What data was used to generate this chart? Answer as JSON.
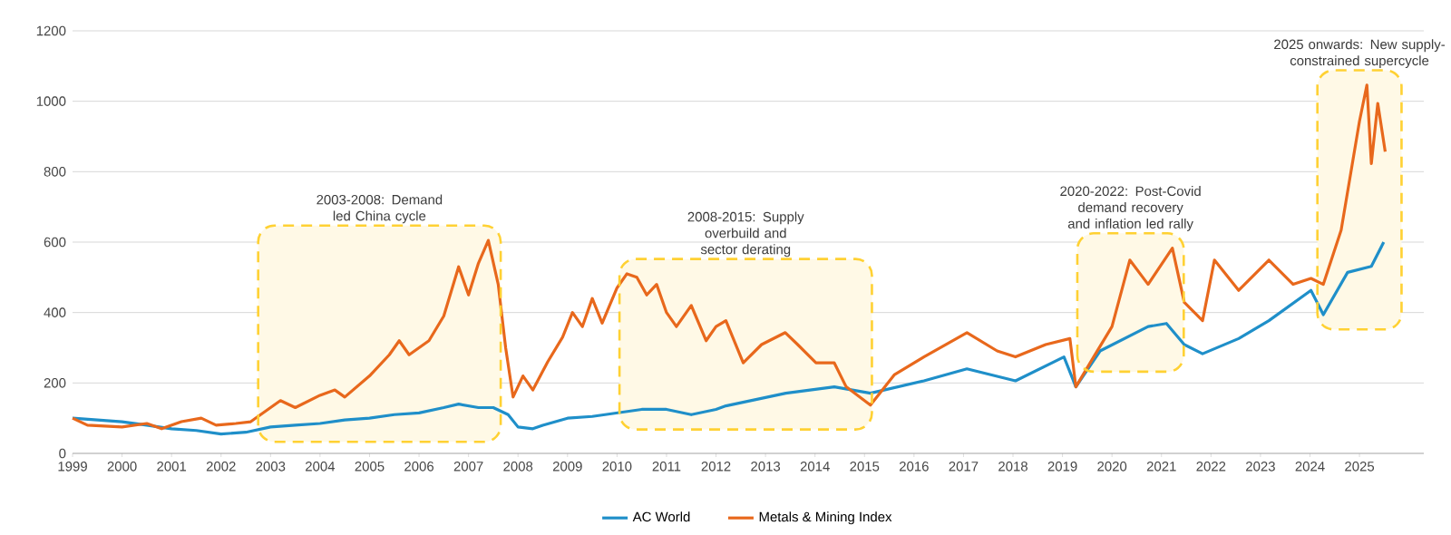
{
  "chart_data": {
    "type": "line",
    "x": [
      1999,
      1999.3,
      2000,
      2000.5,
      2000.8,
      2001.2,
      2001.6,
      2001.9,
      2002.3,
      2002.6,
      2003.0,
      2003.2,
      2003.5,
      2004.0,
      2004.3,
      2004.5,
      2005.0,
      2005.4,
      2005.6,
      2005.8,
      2006.2,
      2006.5,
      2006.8,
      2007.0,
      2007.2,
      2007.4,
      2007.6,
      2007.75,
      2007.9,
      2008.1,
      2008.3,
      2008.6,
      2008.9,
      2009.1,
      2009.3,
      2009.5,
      2009.7,
      2010.0,
      2010.2,
      2010.4,
      2010.6,
      2010.8,
      2011.0,
      2011.2,
      2011.5,
      2011.8,
      2012.0,
      2012.2,
      2012.55,
      2012.92,
      2013.4,
      2013.65,
      2014.02,
      2014.39,
      2014.63,
      2015.12,
      2015.6,
      2016.2,
      2017.07,
      2017.68,
      2018.05,
      2018.66,
      2019.15,
      2019.27,
      2019.63,
      2020.0,
      2020.36,
      2020.73,
      2021.22,
      2021.46,
      2021.83,
      2022.07,
      2022.56,
      2023.17,
      2023.66,
      2024.02,
      2024.27,
      2024.63,
      2025.0,
      2025.15,
      2025.24,
      2025.37,
      2025.52
    ],
    "series": [
      {
        "name": "AC World",
        "color": "#1f8fc9",
        "x": [
          1999,
          1999.5,
          2000,
          2000.5,
          2001,
          2001.5,
          2002,
          2002.5,
          2003,
          2003.5,
          2004,
          2004.5,
          2005,
          2005.5,
          2006,
          2006.5,
          2006.8,
          2007.2,
          2007.5,
          2007.8,
          2008.0,
          2008.3,
          2008.5,
          2009,
          2009.5,
          2010,
          2010.5,
          2011,
          2011.5,
          2012,
          2012.2,
          2013.41,
          2014.39,
          2015.12,
          2016.2,
          2017.07,
          2018.05,
          2019.03,
          2019.27,
          2019.76,
          2020.73,
          2021.1,
          2021.46,
          2021.83,
          2022.56,
          2023.17,
          2024.02,
          2024.27,
          2024.76,
          2025.24,
          2025.49
        ],
        "values": [
          100,
          95,
          90,
          80,
          70,
          65,
          55,
          60,
          75,
          80,
          85,
          95,
          100,
          110,
          115,
          130,
          140,
          130,
          130,
          110,
          75,
          70,
          80,
          100,
          105,
          115,
          125,
          125,
          110,
          125,
          135,
          171,
          189,
          171,
          206,
          240,
          206,
          274,
          189,
          291,
          360,
          369,
          309,
          283,
          326,
          377,
          463,
          394,
          514,
          531,
          600
        ]
      },
      {
        "name": "Metals & Mining Index",
        "color": "#e8681c",
        "values": [
          100,
          80,
          75,
          85,
          70,
          90,
          100,
          80,
          85,
          90,
          130,
          150,
          130,
          165,
          180,
          160,
          220,
          280,
          320,
          280,
          320,
          390,
          530,
          450,
          540,
          605,
          480,
          300,
          160,
          220,
          180,
          260,
          330,
          400,
          360,
          440,
          370,
          470,
          510,
          500,
          450,
          480,
          400,
          360,
          420,
          320,
          360,
          377,
          257,
          309,
          343,
          309,
          257,
          257,
          189,
          137,
          223,
          274,
          343,
          291,
          274,
          309,
          326,
          189,
          274,
          360,
          549,
          480,
          583,
          429,
          377,
          549,
          463,
          549,
          480,
          497,
          480,
          634,
          943,
          1046,
          823,
          994,
          857
        ]
      }
    ],
    "xlim": [
      1999,
      2026.3
    ],
    "ylim": [
      0,
      1200
    ],
    "xticks": [
      1999,
      2000,
      2001,
      2002,
      2003,
      2004,
      2005,
      2006,
      2007,
      2008,
      2009,
      2010,
      2011,
      2012,
      2013,
      2014,
      2015,
      2016,
      2017,
      2018,
      2019,
      2020,
      2021,
      2022,
      2023,
      2024,
      2025
    ],
    "yticks": [
      0,
      200,
      400,
      600,
      800,
      1000,
      1200
    ],
    "grid": "y",
    "legend": "bottom",
    "bands": [
      {
        "axis": "x",
        "from": 2002.75,
        "to": 2007.65,
        "label": "2003-2008: Demand led China cycle"
      },
      {
        "axis": "x",
        "from": 2010.05,
        "to": 2015.15,
        "label": "2008-2015: Supply overbuild and sector derating"
      },
      {
        "axis": "x",
        "from": 2019.3,
        "to": 2021.45,
        "label": "2020-2022: Post-Covid demand recovery and inflation led rally"
      },
      {
        "axis": "x",
        "from": 2024.15,
        "to": 2025.85,
        "label": "2025 onwards: New supply-constrained supercycle"
      }
    ]
  }
}
